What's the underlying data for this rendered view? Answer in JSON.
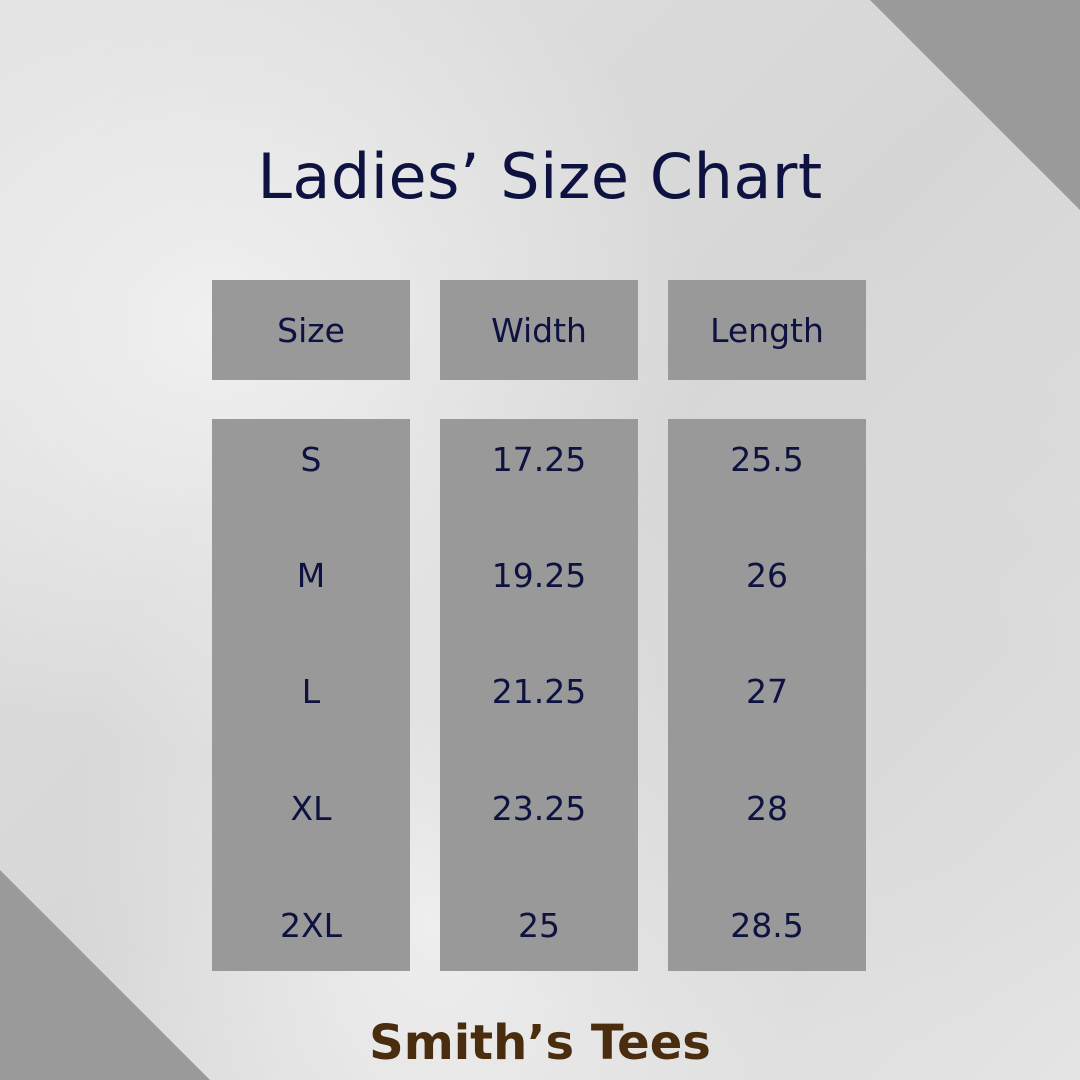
{
  "title": "Ladies’ Size Chart",
  "columns": [
    "Size",
    "Width",
    "Length"
  ],
  "rows": [
    [
      "S",
      "17.25",
      "25.5"
    ],
    [
      "M",
      "19.25",
      "26"
    ],
    [
      "L",
      "21.25",
      "27"
    ],
    [
      "XL",
      "23.25",
      "28"
    ],
    [
      "2XL",
      "25",
      "28.5"
    ]
  ],
  "footer": "Smith’s Tees",
  "colors": {
    "text": "#0d1240",
    "box": "#999999",
    "footer": "#4a2c0e"
  }
}
